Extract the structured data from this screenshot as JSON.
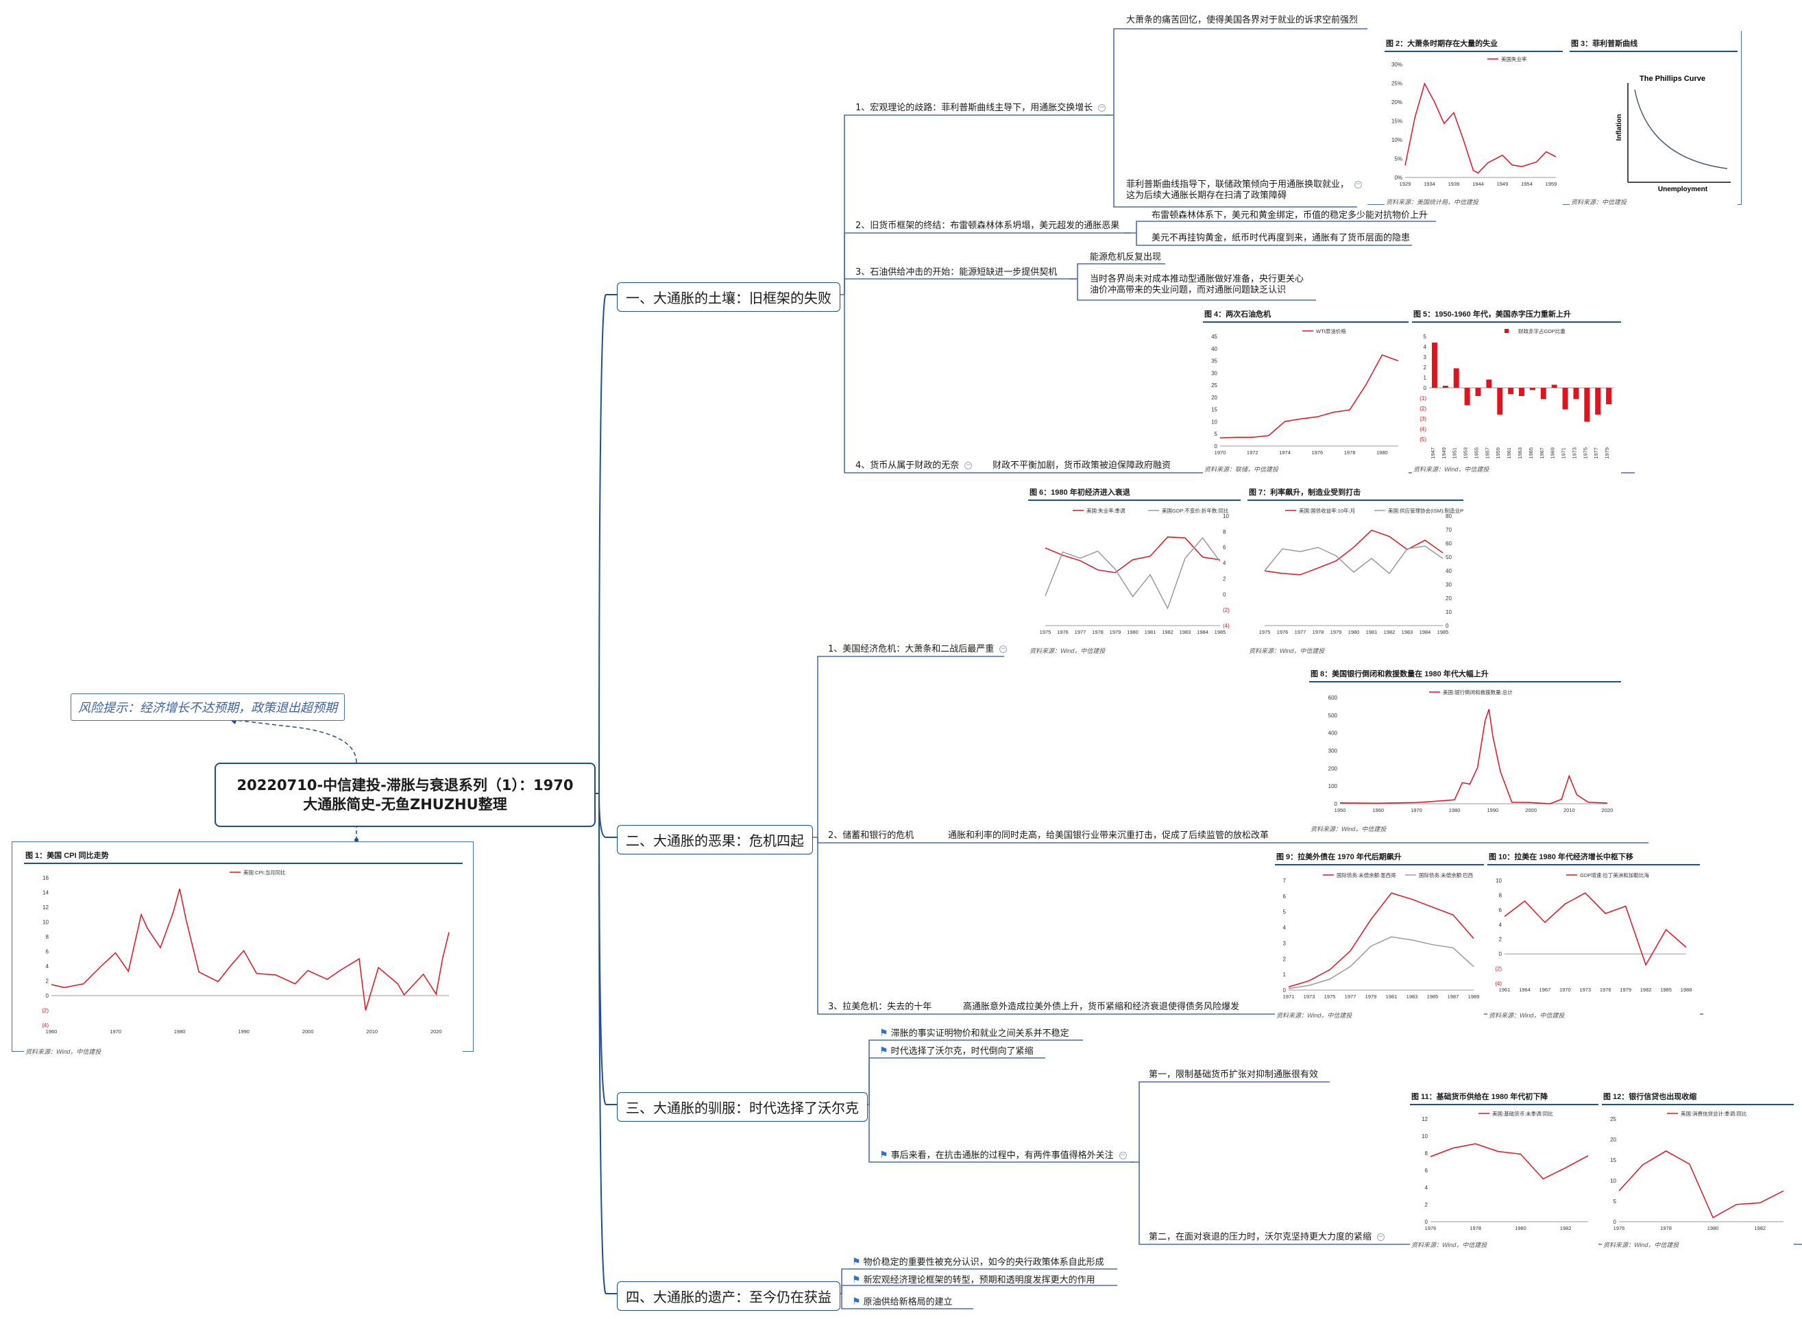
{
  "root": {
    "title_line1": "20220710-中信建投-滞胀与衰退系列（1）：1970",
    "title_line2": "大通胀简史-无鱼ZHUZHU整理"
  },
  "risk": "风险提示：经济增长不达预期，政策退出超预期",
  "branches": [
    {
      "label": "一、大通胀的土壤：旧框架的失败"
    },
    {
      "label": "二、大通胀的恶果：危机四起"
    },
    {
      "label": "三、大通胀的驯服：时代选择了沃尔克"
    },
    {
      "label": "四、大通胀的遗产：至今仍在获益"
    }
  ],
  "b1": {
    "n1": "1、宏观理论的歧路：菲利普斯曲线主导下，用通胀交换增长",
    "n1a": "大萧条的痛苦回忆，使得美国各界对于就业的诉求空前强烈",
    "n1b_1": "菲利普斯曲线指导下，联储政策倾向于用通胀换取就业，",
    "n1b_2": "这为后续大通胀长期存在扫清了政策障碍",
    "n2": "2、旧货币框架的终结：布雷顿森林体系坍塌，美元超发的通胀恶果",
    "n2a": "布雷顿森林体系下，美元和黄金绑定，币值的稳定多少能对抗物价上升",
    "n2b": "美元不再挂钩黄金，纸币时代再度到来，通胀有了货币层面的隐患",
    "n3": "3、石油供给冲击的开始：能源短缺进一步提供契机",
    "n3a": "能源危机反复出现",
    "n3b_1": "当时各界尚未对成本推动型通胀做好准备，央行更关心",
    "n3b_2": "油价冲高带来的失业问题，而对通胀问题缺乏认识",
    "n4": "4、货币从属于财政的无奈",
    "n4a": "财政不平衡加剧，货币政策被迫保障政府融资"
  },
  "b2": {
    "n1": "1、美国经济危机：大萧条和二战后最严重",
    "n2": "2、储蓄和银行的危机",
    "n2a": "通胀和利率的同时走高，给美国银行业带来沉重打击，促成了后续监管的放松改革",
    "n3": "3、拉美危机：失去的十年",
    "n3a": "高通胀意外造成拉美外债上升，货币紧缩和经济衰退使得债务风险爆发"
  },
  "b3": {
    "f1": "滞胀的事实证明物价和就业之间关系并不稳定",
    "f2": "时代选择了沃尔克，时代倒向了紧缩",
    "f3": "事后来看，在抗击通胀的过程中，有两件事值得格外关注",
    "n1": "第一，限制基础货币扩张对抑制通胀很有效",
    "n2": "第二，在面对衰退的压力时，沃尔克坚持更大力度的紧缩"
  },
  "b4": {
    "f1": "物价稳定的重要性被充分认识，如今的央行政策体系自此形成",
    "f2": "新宏观经济理论框架的转型，预期和透明度发挥更大的作用",
    "f3": "原油供给新格局的建立"
  },
  "figures": {
    "fig1": {
      "title": "图 1：美国 CPI 同比走势",
      "legend": "美国:CPI:当月同比",
      "source": "资料来源：Wind，中信建投",
      "yticks": [
        "16",
        "14",
        "12",
        "10",
        "8",
        "6",
        "4",
        "2",
        "0",
        "(2)",
        "(4)"
      ],
      "xticks": [
        "1960",
        "1970",
        "1980",
        "1990",
        "2000",
        "2010",
        "2020"
      ]
    },
    "fig2": {
      "title": "图 2：大萧条时期存在大量的失业",
      "legend": "美国失业率",
      "source": "资料来源：美国统计局，中信建投",
      "yticks": [
        "30%",
        "25%",
        "20%",
        "15%",
        "10%",
        "5%",
        "0%"
      ],
      "xticks": [
        "1929",
        "1934",
        "1939",
        "1944",
        "1949",
        "1954",
        "1959"
      ]
    },
    "fig3": {
      "title": "图 3：菲利普斯曲线",
      "curve_title": "The Phillips Curve",
      "xlabel": "Unemployment",
      "ylabel": "Inflation",
      "source": "资料来源：中信建投"
    },
    "fig4": {
      "title": "图 4：两次石油危机",
      "legend": "WTI原油价格",
      "source": "资料来源：联储，中信建投",
      "yticks": [
        "45",
        "40",
        "35",
        "30",
        "25",
        "20",
        "15",
        "10",
        "5",
        "0"
      ],
      "xticks": [
        "1970",
        "1972",
        "1974",
        "1976",
        "1978",
        "1980"
      ]
    },
    "fig5": {
      "title": "图 5：1950-1960 年代，美国赤字压力重新上升",
      "legend": "财政赤字占GDP比重",
      "source": "资料来源：Wind，中信建投",
      "yticks": [
        "5",
        "4",
        "3",
        "2",
        "1",
        "0",
        "(1)",
        "(2)",
        "(3)",
        "(4)",
        "(5)"
      ],
      "xticks": [
        "1947",
        "1949",
        "1951",
        "1953",
        "1955",
        "1957",
        "1959",
        "1961",
        "1963",
        "1965",
        "1967",
        "1969",
        "1971",
        "1973",
        "1975",
        "1977",
        "1979"
      ]
    },
    "fig6": {
      "title": "图 6：1980 年初经济进入衰退",
      "legend_a": "美国:失业率:季调",
      "legend_b": "美国GDP:不变价:折年数:同比",
      "source": "资料来源：Wind，中信建投",
      "yticks_l": [
        "12",
        "10",
        "8",
        "6",
        "4",
        "2",
        "0"
      ],
      "yticks_r": [
        "10",
        "8",
        "6",
        "4",
        "2",
        "0",
        "(2)",
        "(4)"
      ],
      "xticks": [
        "1975",
        "1976",
        "1977",
        "1978",
        "1979",
        "1980",
        "1981",
        "1982",
        "1983",
        "1984",
        "1985"
      ]
    },
    "fig7": {
      "title": "图 7：利率飙升，制造业受到打击",
      "legend_a": "美国:国债收益率:10年:月",
      "legend_b": "美国:供应管理协会(ISM):制造业PMI",
      "source": "资料来源：Wind，中信建投",
      "yticks_l": [
        "16",
        "14",
        "12",
        "10",
        "8",
        "6",
        "4",
        "2",
        "0"
      ],
      "yticks_r": [
        "80",
        "70",
        "60",
        "50",
        "40",
        "30",
        "20",
        "10",
        "0"
      ],
      "xticks": [
        "1975",
        "1976",
        "1977",
        "1978",
        "1979",
        "1980",
        "1981",
        "1982",
        "1983",
        "1984",
        "1985"
      ]
    },
    "fig8": {
      "title": "图 8：美国银行倒闭和救援数量在 1980 年代大幅上升",
      "legend": "美国:银行倒闭和救援数量:总计",
      "source": "资料来源：Wind，中信建投",
      "yticks": [
        "600",
        "500",
        "400",
        "300",
        "200",
        "100",
        "0"
      ],
      "xticks": [
        "1950",
        "1960",
        "1970",
        "1980",
        "1990",
        "2000",
        "2010",
        "2020"
      ]
    },
    "fig9": {
      "title": "图 9：拉美外债在 1970 年代后期飙升",
      "legend_a": "国际债务:未偿余额:墨西哥",
      "legend_b": "国际债务:未偿余额:巴西",
      "source": "资料来源：Wind，中信建投",
      "yticks": [
        "7",
        "6",
        "5",
        "4",
        "3",
        "2",
        "1",
        "0"
      ],
      "xticks": [
        "1971",
        "1973",
        "1975",
        "1977",
        "1979",
        "1981",
        "1983",
        "1985",
        "1987",
        "1989"
      ]
    },
    "fig10": {
      "title": "图 10：拉美在 1980 年代经济增长中枢下移",
      "legend": "GDP增速:拉丁美洲和加勒比海",
      "source": "资料来源：Wind，中信建投",
      "yticks": [
        "10",
        "8",
        "6",
        "4",
        "2",
        "0",
        "(2)",
        "(4)"
      ],
      "xticks": [
        "1961",
        "1964",
        "1967",
        "1970",
        "1973",
        "1976",
        "1979",
        "1982",
        "1985",
        "1988"
      ]
    },
    "fig11": {
      "title": "图 11：基础货币供给在 1980 年代初下降",
      "legend": "美国:基础货币:未季调:同比",
      "source": "资料来源：Wind，中信建投",
      "yticks": [
        "12",
        "10",
        "8",
        "6",
        "4",
        "2",
        "0"
      ],
      "xticks": [
        "1976",
        "1978",
        "1980",
        "1982"
      ]
    },
    "fig12": {
      "title": "图 12：银行信贷也出现收缩",
      "legend": "美国:消费信贷总计:季调:同比",
      "source": "资料来源：Wind，中信建投",
      "yticks": [
        "25",
        "20",
        "15",
        "10",
        "5",
        "0"
      ],
      "xticks": [
        "1976",
        "1978",
        "1980",
        "1982"
      ]
    }
  },
  "chart_data": [
    {
      "type": "line",
      "title": "图 1：美国 CPI 同比走势",
      "x": [
        1960,
        1962,
        1965,
        1968,
        1970,
        1972,
        1974,
        1975,
        1977,
        1979,
        1980,
        1981,
        1983,
        1986,
        1988,
        1990,
        1992,
        1995,
        1998,
        2000,
        2003,
        2005,
        2008,
        2009,
        2011,
        2014,
        2015,
        2018,
        2020,
        2021,
        2022
      ],
      "series": [
        {
          "name": "美国:CPI:当月同比",
          "values": [
            1.5,
            1.1,
            1.6,
            4.2,
            5.8,
            3.3,
            11.0,
            9.1,
            6.5,
            11.3,
            14.5,
            10.3,
            3.2,
            1.9,
            4.1,
            6.1,
            3.0,
            2.8,
            1.6,
            3.4,
            2.2,
            3.4,
            5.0,
            -2.0,
            3.8,
            1.6,
            0.1,
            2.9,
            0.2,
            5.0,
            8.6
          ]
        }
      ],
      "ylim": [
        -4,
        16
      ]
    },
    {
      "type": "line",
      "title": "图 2：大萧条时期存在大量的失业",
      "x": [
        1929,
        1931,
        1933,
        1935,
        1937,
        1939,
        1941,
        1943,
        1944,
        1946,
        1949,
        1951,
        1953,
        1956,
        1958,
        1960
      ],
      "series": [
        {
          "name": "美国失业率",
          "values": [
            3.2,
            15.9,
            24.9,
            20.1,
            14.3,
            17.2,
            9.9,
            1.9,
            1.2,
            3.9,
            5.9,
            3.3,
            2.9,
            4.1,
            6.8,
            5.5
          ]
        }
      ],
      "ylim": [
        0,
        30
      ]
    },
    {
      "type": "line",
      "title": "图 4：两次石油危机",
      "x": [
        1970,
        1971,
        1972,
        1973,
        1974,
        1975,
        1976,
        1977,
        1978,
        1979,
        1980,
        1981
      ],
      "series": [
        {
          "name": "WTI原油价格",
          "values": [
            3.35,
            3.56,
            3.56,
            4.31,
            10.11,
            11.16,
            12.0,
            13.9,
            14.85,
            25.1,
            37.4,
            35.0
          ]
        }
      ],
      "ylim": [
        0,
        45
      ]
    },
    {
      "type": "bar",
      "title": "图 5：1950-1960 年代，美国赤字压力重新上升",
      "categories": [
        "1947",
        "1949",
        "1951",
        "1953",
        "1955",
        "1957",
        "1959",
        "1961",
        "1963",
        "1965",
        "1967",
        "1969",
        "1971",
        "1973",
        "1975",
        "1977",
        "1979"
      ],
      "series": [
        {
          "name": "财政赤字占GDP比重",
          "values": [
            4.4,
            0.2,
            1.9,
            -1.7,
            -0.8,
            0.8,
            -2.6,
            -0.6,
            -0.8,
            -0.2,
            -1.1,
            0.3,
            -2.1,
            -1.1,
            -3.3,
            -2.6,
            -1.6
          ]
        }
      ],
      "ylim": [
        -5,
        5
      ]
    },
    {
      "type": "line",
      "title": "图 6：1980 年初经济进入衰退",
      "x": [
        1975,
        1976,
        1977,
        1978,
        1979,
        1980,
        1981,
        1982,
        1983,
        1984,
        1985
      ],
      "series": [
        {
          "name": "美国:失业率:季调",
          "values": [
            8.5,
            7.7,
            7.1,
            6.1,
            5.8,
            7.2,
            7.6,
            9.7,
            9.6,
            7.5,
            7.2
          ]
        },
        {
          "name": "美国GDP:不变价:折年数:同比",
          "values": [
            -0.2,
            5.4,
            4.6,
            5.5,
            3.2,
            -0.3,
            2.5,
            -1.8,
            4.6,
            7.2,
            4.2
          ]
        }
      ],
      "ylim": [
        0,
        12
      ]
    },
    {
      "type": "line",
      "title": "图 7：利率飙升，制造业受到打击",
      "x": [
        1975,
        1976,
        1977,
        1978,
        1979,
        1980,
        1981,
        1982,
        1983,
        1984,
        1985
      ],
      "series": [
        {
          "name": "美国:国债收益率:10年:月",
          "values": [
            7.99,
            7.61,
            7.42,
            8.41,
            9.43,
            11.43,
            13.92,
            13.01,
            11.1,
            12.46,
            10.62
          ]
        },
        {
          "name": "美国:供应管理协会(ISM):制造业PMI",
          "values": [
            40.0,
            56.0,
            54.0,
            57.0,
            51.0,
            39.0,
            49.0,
            38.0,
            56.0,
            58.0,
            49.0
          ]
        }
      ],
      "ylim": [
        0,
        16
      ]
    },
    {
      "type": "line",
      "title": "图 8：美国银行倒闭和救援数量在 1980 年代大幅上升",
      "x": [
        1950,
        1960,
        1970,
        1975,
        1980,
        1982,
        1984,
        1986,
        1988,
        1989,
        1990,
        1992,
        1995,
        2000,
        2005,
        2008,
        2010,
        2012,
        2015,
        2020
      ],
      "series": [
        {
          "name": "美国:银行倒闭和救援数量:总计",
          "values": [
            5,
            3,
            7,
            14,
            22,
            119,
            111,
            204,
            470,
            534,
            382,
            181,
            8,
            7,
            0,
            25,
            157,
            51,
            8,
            4
          ]
        }
      ],
      "ylim": [
        0,
        600
      ]
    },
    {
      "type": "line",
      "title": "图 9：拉美外债在 1970 年代后期飙升",
      "x": [
        1971,
        1973,
        1975,
        1977,
        1979,
        1981,
        1983,
        1985,
        1987,
        1989
      ],
      "series": [
        {
          "name": "国际债务:未偿余额:墨西哥",
          "values": [
            0.2,
            0.6,
            1.3,
            2.5,
            4.5,
            6.2,
            5.8,
            5.3,
            4.8,
            3.3
          ]
        },
        {
          "name": "国际债务:未偿余额:巴西",
          "values": [
            0.1,
            0.3,
            0.7,
            1.5,
            2.8,
            3.4,
            3.2,
            2.9,
            2.7,
            1.5
          ]
        }
      ],
      "ylim": [
        0,
        7
      ]
    },
    {
      "type": "line",
      "title": "图 10：拉美在 1980 年代经济增长中枢下移",
      "x": [
        1961,
        1964,
        1967,
        1970,
        1973,
        1976,
        1979,
        1982,
        1985,
        1988
      ],
      "series": [
        {
          "name": "GDP增速:拉丁美洲和加勒比海",
          "values": [
            5.1,
            7.2,
            4.3,
            6.8,
            8.3,
            5.5,
            6.5,
            -1.5,
            3.3,
            0.9
          ]
        }
      ],
      "ylim": [
        -4,
        10
      ]
    },
    {
      "type": "line",
      "title": "图 11：基础货币供给在 1980 年代初下降",
      "x": [
        1976,
        1977,
        1978,
        1979,
        1980,
        1981,
        1982,
        1983
      ],
      "series": [
        {
          "name": "美国:基础货币:未季调:同比",
          "values": [
            7.6,
            8.6,
            9.1,
            8.2,
            7.9,
            5.0,
            6.3,
            7.7
          ]
        }
      ],
      "ylim": [
        0,
        12
      ]
    },
    {
      "type": "line",
      "title": "图 12：银行信贷也出现收缩",
      "x": [
        1976,
        1977,
        1978,
        1979,
        1980,
        1981,
        1982,
        1983
      ],
      "series": [
        {
          "name": "美国:消费信贷总计:季调:同比",
          "values": [
            7.5,
            13.8,
            17.2,
            14.0,
            1.0,
            4.2,
            4.6,
            7.5
          ]
        }
      ],
      "ylim": [
        0,
        25
      ]
    }
  ]
}
